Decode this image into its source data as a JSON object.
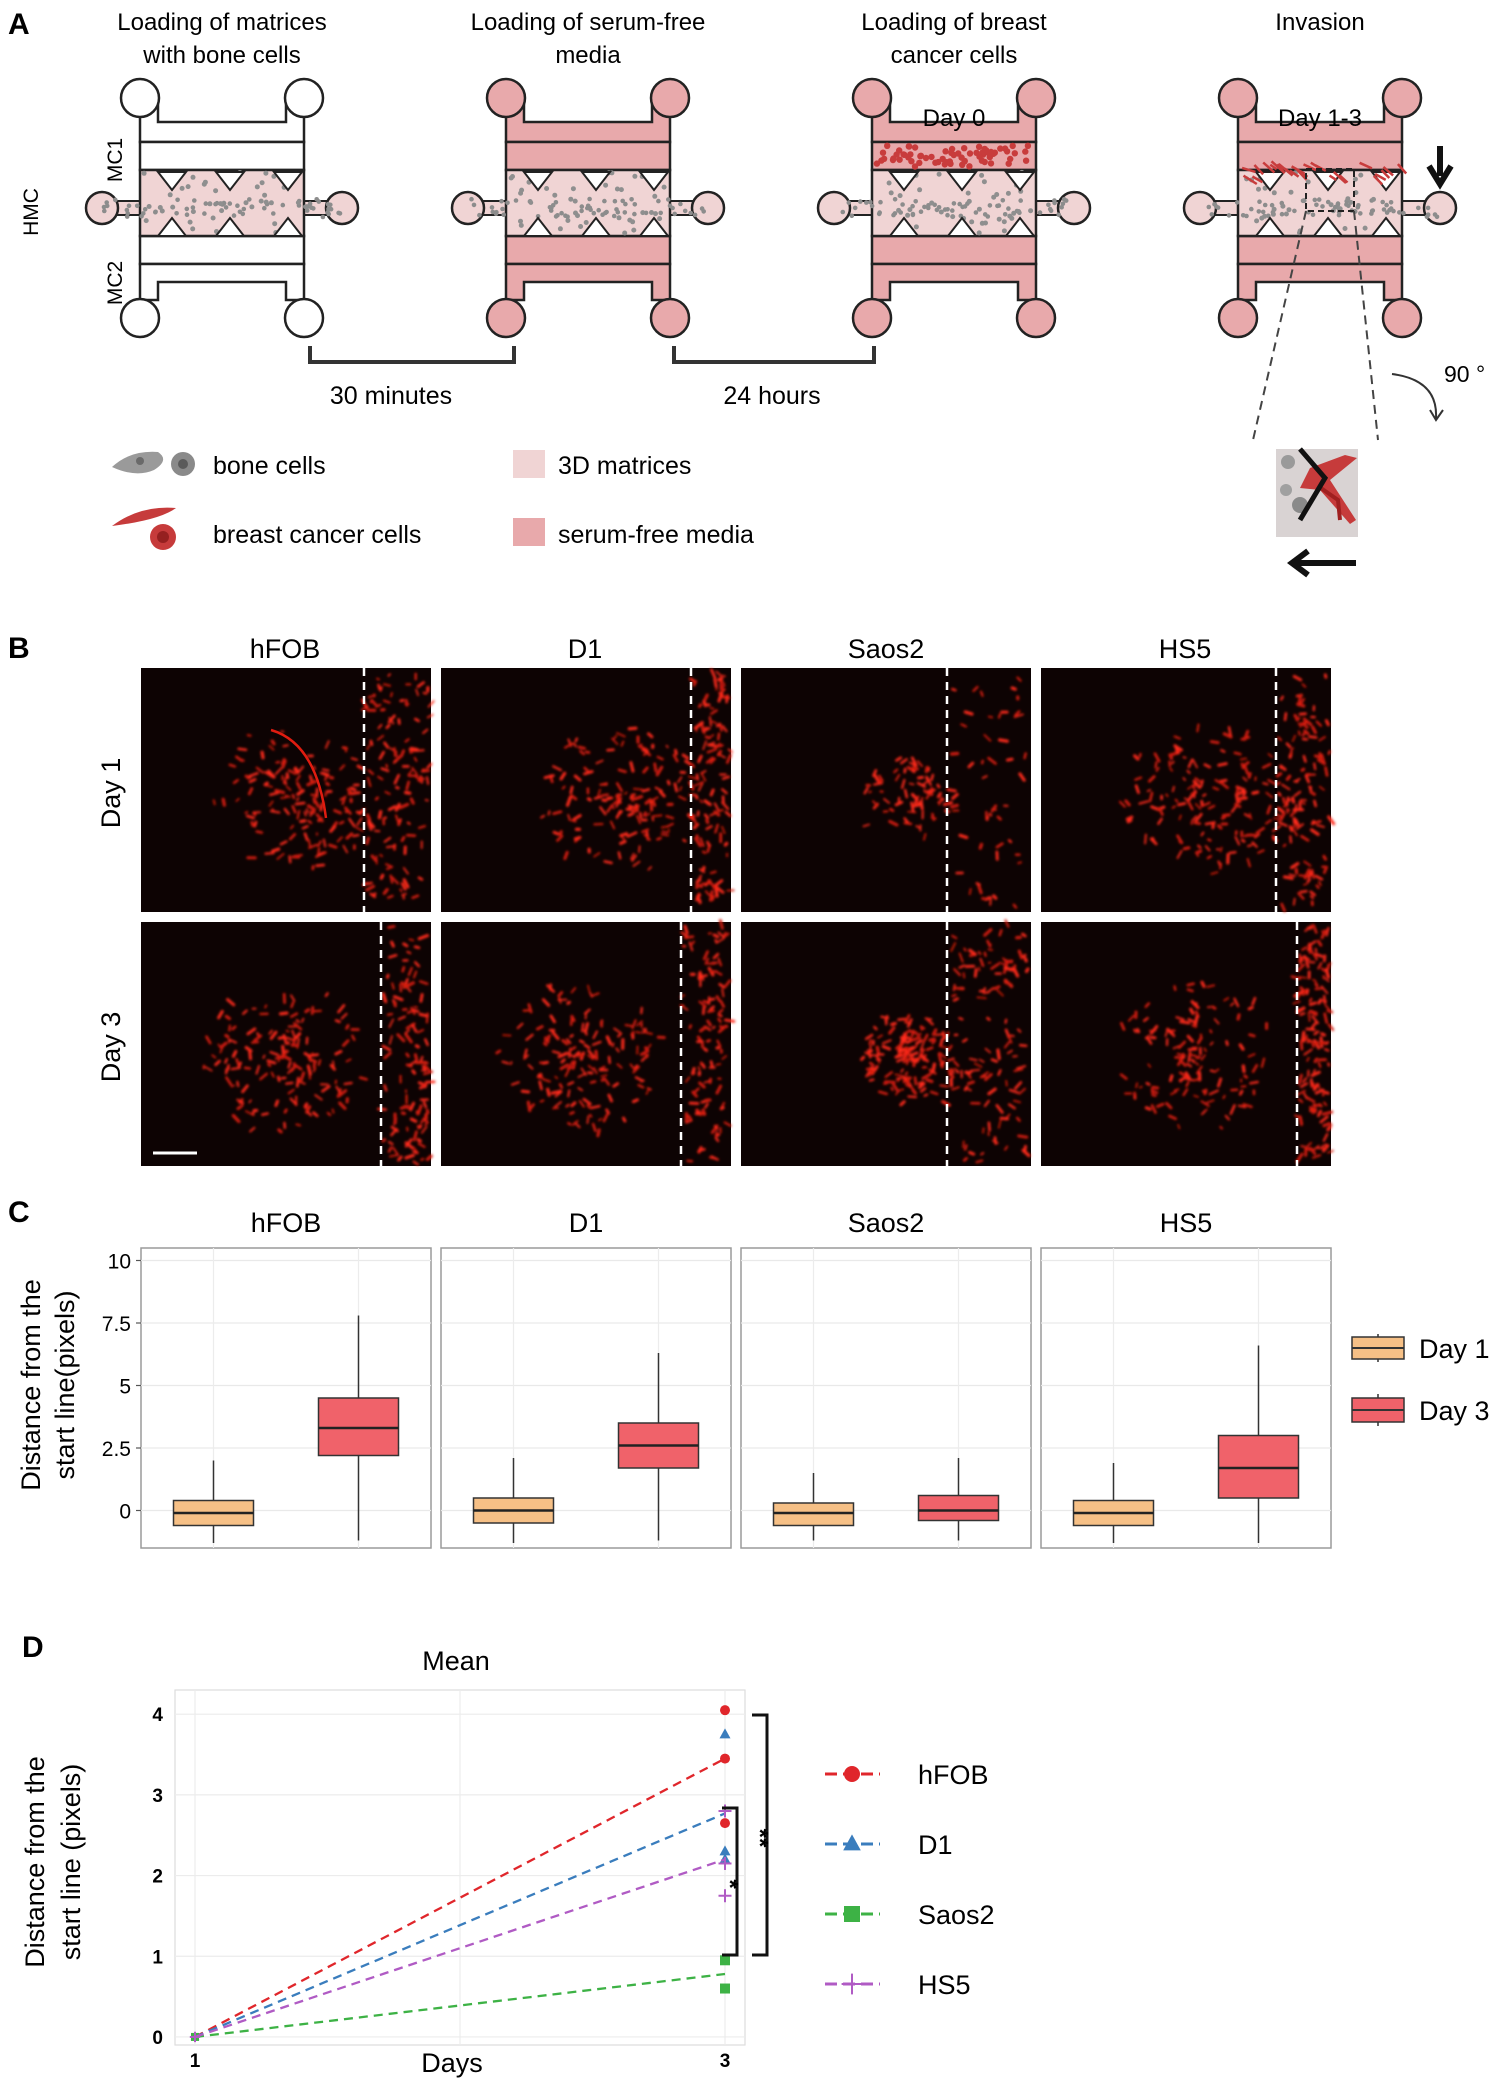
{
  "panel_labels": {
    "a": "A",
    "b": "B",
    "c": "C",
    "d": "D"
  },
  "panel_a": {
    "steps": [
      {
        "title1": "Loading of matrices",
        "title2": "with bone cells",
        "inner": ""
      },
      {
        "title1": "Loading  of serum-free",
        "title2": "media",
        "inner": ""
      },
      {
        "title1": "Loading of breast",
        "title2": "cancer cells",
        "inner": "Day 0"
      },
      {
        "title1": "Invasion",
        "title2": "",
        "inner": "Day 1-3"
      }
    ],
    "channel_labels": {
      "top": "MC1",
      "middle": "HMC",
      "bottom": "MC2"
    },
    "intervals": [
      "30 minutes",
      "24 hours"
    ],
    "rotation": "90 °",
    "legend": {
      "bone": "bone cells",
      "cancer": "breast cancer cells",
      "matrix": "3D matrices",
      "media": "serum-free  media"
    },
    "colors": {
      "matrix": "#f0d4d4",
      "media": "#e8a9ab",
      "cancer": "#c83c3c",
      "bone": "#8c8c8c"
    }
  },
  "panel_b": {
    "columns": [
      "hFOB",
      "D1",
      "Saos2",
      "HS5"
    ],
    "rows": [
      "Day 1",
      "Day 3"
    ]
  },
  "panel_c": {
    "ylabel_line1": "Distance from the",
    "ylabel_line2": "start line(pixels)",
    "legend": [
      "Day 1",
      "Day 3"
    ],
    "colors": {
      "Day 1": "#f6c086",
      "Day 3": "#f0626a"
    }
  },
  "panel_d": {
    "title": "Mean",
    "xlabel": "Days",
    "ylabel_line1": "Distance from the",
    "ylabel_line2": "start line (pixels)",
    "sig_outer": "**",
    "sig_inner": "*"
  },
  "chart_data": [
    {
      "type": "box",
      "facets": [
        "hFOB",
        "D1",
        "Saos2",
        "HS5"
      ],
      "categories": [
        "Day 1",
        "Day 3"
      ],
      "ylim": [
        -1.5,
        10.5
      ],
      "yticks": [
        0,
        2.5,
        5,
        7.5,
        10
      ],
      "ytick_labels": [
        "0",
        "2.5",
        "5",
        "7.5",
        "10"
      ],
      "grid": true,
      "legend_position": "right",
      "series": [
        {
          "facet": "hFOB",
          "name": "Day 1",
          "color": "#f6c086",
          "min": -1.3,
          "q1": -0.6,
          "median": -0.1,
          "q3": 0.4,
          "max": 2.0
        },
        {
          "facet": "hFOB",
          "name": "Day 3",
          "color": "#f0626a",
          "min": -1.2,
          "q1": 2.2,
          "median": 3.3,
          "q3": 4.5,
          "max": 7.8
        },
        {
          "facet": "D1",
          "name": "Day 1",
          "color": "#f6c086",
          "min": -1.3,
          "q1": -0.5,
          "median": 0.0,
          "q3": 0.5,
          "max": 2.1
        },
        {
          "facet": "D1",
          "name": "Day 3",
          "color": "#f0626a",
          "min": -1.2,
          "q1": 1.7,
          "median": 2.6,
          "q3": 3.5,
          "max": 6.3
        },
        {
          "facet": "Saos2",
          "name": "Day 1",
          "color": "#f6c086",
          "min": -1.2,
          "q1": -0.6,
          "median": -0.1,
          "q3": 0.3,
          "max": 1.5
        },
        {
          "facet": "Saos2",
          "name": "Day 3",
          "color": "#f0626a",
          "min": -1.2,
          "q1": -0.4,
          "median": 0.0,
          "q3": 0.6,
          "max": 2.1
        },
        {
          "facet": "HS5",
          "name": "Day 1",
          "color": "#f6c086",
          "min": -1.3,
          "q1": -0.6,
          "median": -0.1,
          "q3": 0.4,
          "max": 1.9
        },
        {
          "facet": "HS5",
          "name": "Day 3",
          "color": "#f0626a",
          "min": -1.3,
          "q1": 0.5,
          "median": 1.7,
          "q3": 3.0,
          "max": 6.6
        }
      ]
    },
    {
      "type": "line",
      "title": "Mean",
      "xlabel": "Days",
      "ylabel": "Distance from the start line (pixels)",
      "x": [
        1,
        3
      ],
      "xticks": [
        "1",
        "3"
      ],
      "ylim": [
        -0.1,
        4.3
      ],
      "yticks": [
        0,
        1,
        2,
        3,
        4
      ],
      "ytick_labels": [
        "0",
        "1",
        "2",
        "3",
        "4"
      ],
      "grid": true,
      "legend_position": "right",
      "series": [
        {
          "name": "hFOB",
          "color": "#e0262b",
          "marker": "circle",
          "values": [
            0,
            3.45
          ],
          "day3_points": [
            4.05,
            3.45,
            2.65
          ]
        },
        {
          "name": "D1",
          "color": "#3a7dbd",
          "marker": "triangle",
          "values": [
            0,
            2.77
          ],
          "day3_points": [
            3.75,
            2.3,
            2.2
          ]
        },
        {
          "name": "Saos2",
          "color": "#3db245",
          "marker": "square",
          "values": [
            0,
            0.78
          ],
          "day3_points": [
            0.95,
            0.6
          ]
        },
        {
          "name": "HS5",
          "color": "#b05bc4",
          "marker": "plus",
          "values": [
            0,
            2.2
          ],
          "day3_points": [
            2.8,
            1.75,
            2.15
          ]
        }
      ]
    }
  ]
}
